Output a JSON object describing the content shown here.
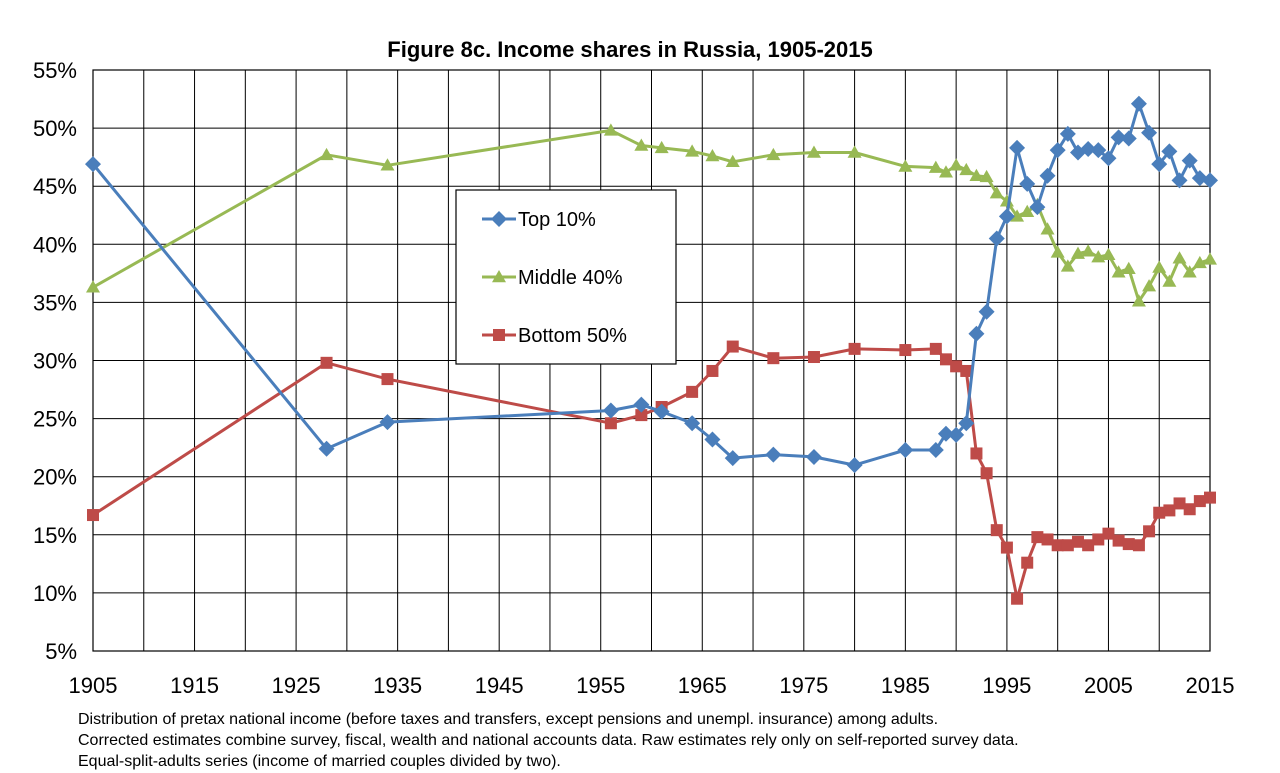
{
  "chart_data": {
    "type": "line",
    "title": "Figure 8c. Income shares in Russia, 1905-2015",
    "xlabel": "",
    "ylabel": "",
    "xlim": [
      1905,
      2015
    ],
    "ylim": [
      5,
      55
    ],
    "x_ticks": [
      1905,
      1915,
      1925,
      1935,
      1945,
      1955,
      1965,
      1975,
      1985,
      1995,
      2005,
      2015
    ],
    "x_tick_labels": [
      "1905",
      "1915",
      "1925",
      "1935",
      "1945",
      "1955",
      "1965",
      "1975",
      "1985",
      "1995",
      "2005",
      "2015"
    ],
    "y_ticks": [
      5,
      10,
      15,
      20,
      25,
      30,
      35,
      40,
      45,
      50,
      55
    ],
    "y_tick_labels": [
      "5%",
      "10%",
      "15%",
      "20%",
      "25%",
      "30%",
      "35%",
      "40%",
      "45%",
      "50%",
      "55%"
    ],
    "grid": true,
    "legend_position": "upper-center",
    "series": [
      {
        "name": "Top 10%",
        "color": "#4a7ebb",
        "marker": "diamond",
        "x": [
          1905,
          1928,
          1934,
          1956,
          1959,
          1961,
          1964,
          1966,
          1968,
          1972,
          1976,
          1980,
          1985,
          1988,
          1989,
          1990,
          1991,
          1992,
          1993,
          1994,
          1995,
          1996,
          1997,
          1998,
          1999,
          2000,
          2001,
          2002,
          2003,
          2004,
          2005,
          2006,
          2007,
          2008,
          2009,
          2010,
          2011,
          2012,
          2013,
          2014,
          2015
        ],
        "values": [
          46.9,
          22.4,
          24.7,
          25.7,
          26.2,
          25.6,
          24.6,
          23.2,
          21.6,
          21.9,
          21.7,
          21.0,
          22.3,
          22.3,
          23.7,
          23.6,
          24.6,
          32.3,
          34.2,
          40.5,
          42.4,
          48.3,
          45.2,
          43.2,
          45.9,
          48.1,
          49.5,
          47.9,
          48.2,
          48.1,
          47.4,
          49.2,
          49.1,
          52.1,
          49.6,
          46.9,
          48.0,
          45.5,
          47.2,
          45.7,
          45.5
        ]
      },
      {
        "name": "Middle 40%",
        "color": "#98b954",
        "marker": "triangle",
        "x": [
          1905,
          1928,
          1934,
          1956,
          1959,
          1961,
          1964,
          1966,
          1968,
          1972,
          1976,
          1980,
          1985,
          1988,
          1989,
          1990,
          1991,
          1992,
          1993,
          1994,
          1995,
          1996,
          1997,
          1998,
          1999,
          2000,
          2001,
          2002,
          2003,
          2004,
          2005,
          2006,
          2007,
          2008,
          2009,
          2010,
          2011,
          2012,
          2013,
          2014,
          2015
        ],
        "values": [
          36.3,
          47.7,
          46.8,
          49.8,
          48.5,
          48.3,
          48.0,
          47.6,
          47.1,
          47.7,
          47.9,
          47.9,
          46.7,
          46.6,
          46.2,
          46.8,
          46.4,
          45.9,
          45.8,
          44.4,
          43.7,
          42.4,
          42.8,
          43.4,
          41.3,
          39.3,
          38.1,
          39.2,
          39.4,
          38.9,
          39.1,
          37.6,
          37.9,
          35.1,
          36.4,
          38.0,
          36.8,
          38.8,
          37.6,
          38.4,
          38.7
        ]
      },
      {
        "name": "Bottom 50%",
        "color": "#be4b48",
        "marker": "square",
        "x": [
          1905,
          1928,
          1934,
          1956,
          1959,
          1961,
          1964,
          1966,
          1968,
          1972,
          1976,
          1980,
          1985,
          1988,
          1989,
          1990,
          1991,
          1992,
          1993,
          1994,
          1995,
          1996,
          1997,
          1998,
          1999,
          2000,
          2001,
          2002,
          2003,
          2004,
          2005,
          2006,
          2007,
          2008,
          2009,
          2010,
          2011,
          2012,
          2013,
          2014,
          2015
        ],
        "values": [
          16.7,
          29.8,
          28.4,
          24.6,
          25.3,
          26.0,
          27.3,
          29.1,
          31.2,
          30.2,
          30.3,
          31.0,
          30.9,
          31.0,
          30.1,
          29.5,
          29.1,
          22.0,
          20.3,
          15.4,
          13.9,
          9.5,
          12.6,
          14.8,
          14.6,
          14.1,
          14.1,
          14.4,
          14.1,
          14.6,
          15.1,
          14.5,
          14.2,
          14.1,
          15.3,
          16.9,
          17.1,
          17.7,
          17.2,
          17.9,
          18.2
        ]
      }
    ]
  },
  "notes": [
    "Distribution of pretax national income (before taxes and transfers, except pensions and unempl. insurance) among adults.",
    "Corrected estimates combine survey, fiscal, wealth and national accounts data. Raw estimates rely only on self-reported survey data.",
    "Equal-split-adults series (income of married couples divided by two)."
  ]
}
